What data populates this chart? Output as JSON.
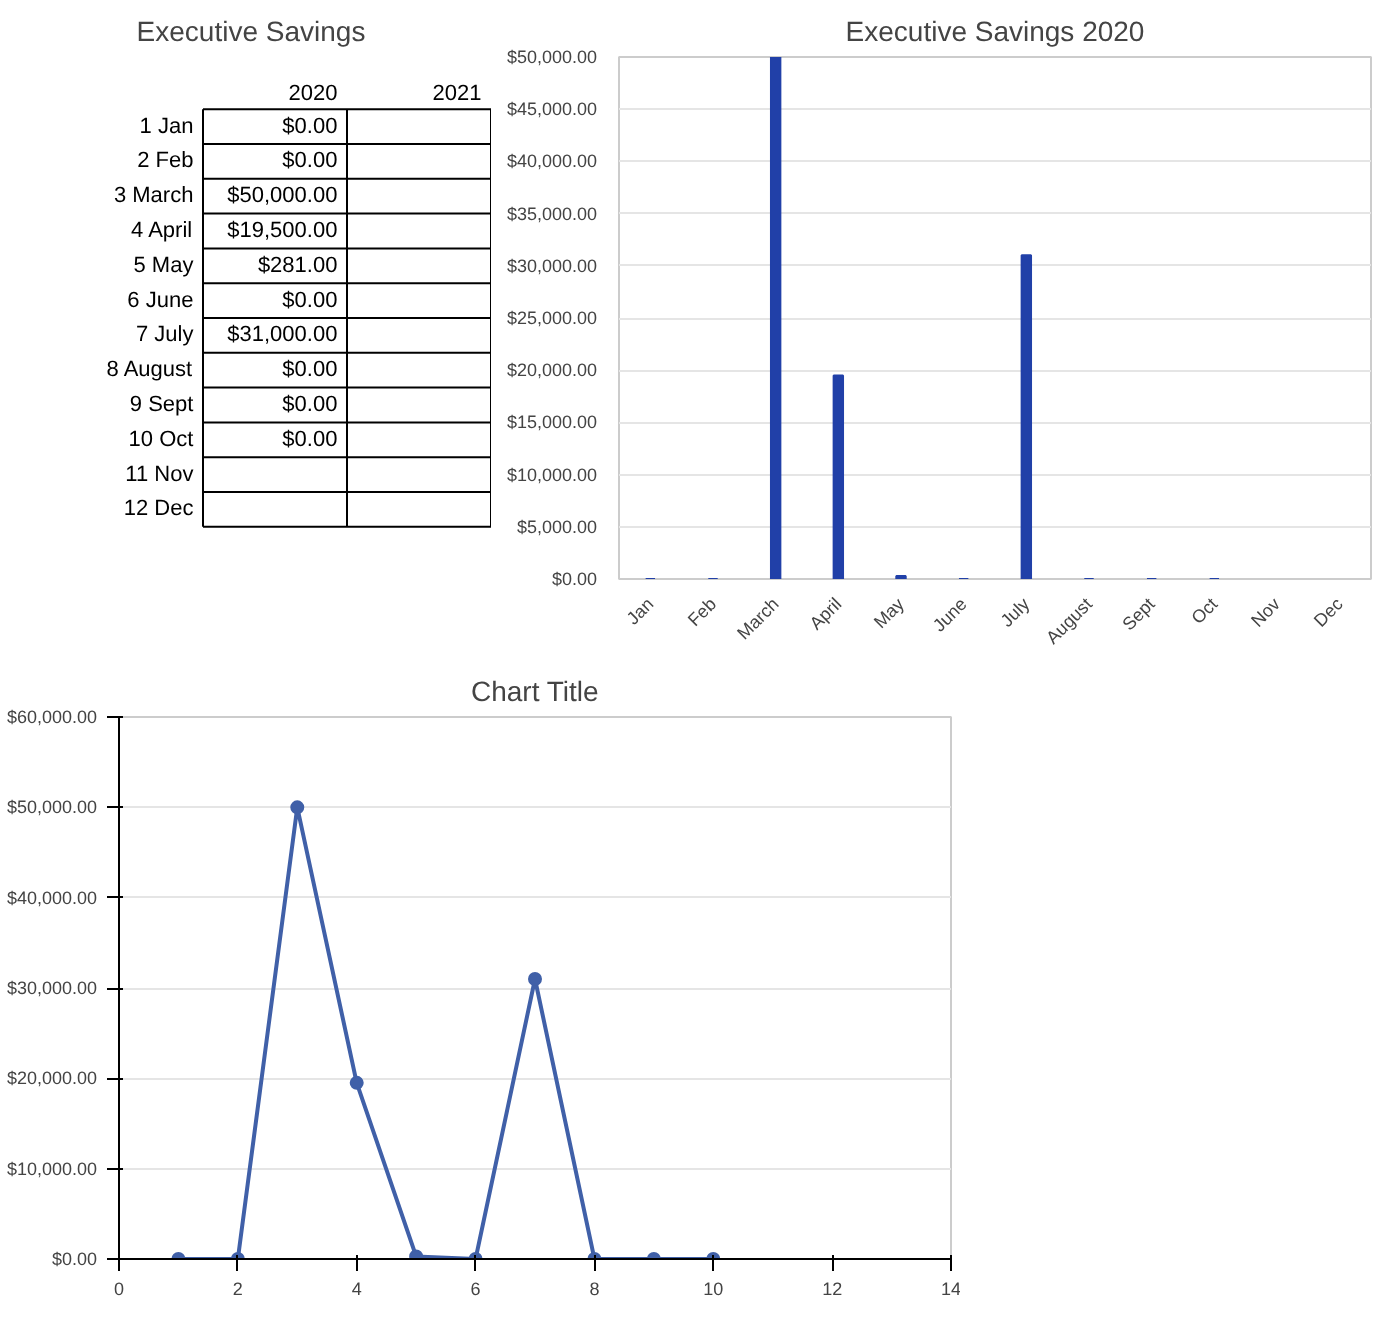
{
  "chart_data": [
    {
      "type": "other",
      "title": "Executive Savings",
      "annotations": [
        "2020",
        "2021"
      ],
      "categories": [
        "1 Jan",
        "2 Feb",
        "3 March",
        "4 April",
        "5 May",
        "6 June",
        "7 July",
        "8 August",
        "9 Sept",
        "10 Oct",
        "11 Nov",
        "12 Dec"
      ],
      "value_labels": [
        "$0.00",
        "$0.00",
        "$50,000.00",
        "$19,500.00",
        "$281.00",
        "$0.00",
        "$31,000.00",
        "$0.00",
        "$0.00",
        "$0.00",
        null,
        null
      ]
    },
    {
      "type": "bar",
      "title": "Executive Savings 2020",
      "categories": [
        "Jan",
        "Feb",
        "March",
        "April",
        "May",
        "June",
        "July",
        "August",
        "Sept",
        "Oct",
        "Nov",
        "Dec"
      ],
      "values": [
        0,
        0,
        50000,
        19500,
        281,
        0,
        31000,
        0,
        0,
        0,
        null,
        null
      ],
      "color": "#2140a8",
      "ylim": [
        0,
        50000
      ],
      "yticks": [
        {
          "value": 0,
          "label": "$0.00"
        },
        {
          "value": 5000,
          "label": "$5,000.00"
        },
        {
          "value": 10000,
          "label": "$10,000.00"
        },
        {
          "value": 15000,
          "label": "$15,000.00"
        },
        {
          "value": 20000,
          "label": "$20,000.00"
        },
        {
          "value": 25000,
          "label": "$25,000.00"
        },
        {
          "value": 30000,
          "label": "$30,000.00"
        },
        {
          "value": 35000,
          "label": "$35,000.00"
        },
        {
          "value": 40000,
          "label": "$40,000.00"
        },
        {
          "value": 45000,
          "label": "$45,000.00"
        },
        {
          "value": 50000,
          "label": "$50,000.00"
        }
      ],
      "grid": "y"
    },
    {
      "type": "line",
      "title": "Chart Title",
      "x": [
        1,
        2,
        3,
        4,
        5,
        6,
        7,
        8,
        9,
        10
      ],
      "values": [
        0,
        0,
        50000,
        19500,
        281,
        0,
        31000,
        0,
        0,
        0
      ],
      "color": "#4060a8",
      "xlim": [
        0,
        14
      ],
      "xticks": [
        0,
        2,
        4,
        6,
        8,
        10,
        12,
        14
      ],
      "ylim": [
        0,
        60000
      ],
      "yticks": [
        {
          "value": 0,
          "label": "$0.00"
        },
        {
          "value": 10000,
          "label": "$10,000.00"
        },
        {
          "value": 20000,
          "label": "$20,000.00"
        },
        {
          "value": 30000,
          "label": "$30,000.00"
        },
        {
          "value": 40000,
          "label": "$40,000.00"
        },
        {
          "value": 50000,
          "label": "$50,000.00"
        },
        {
          "value": 60000,
          "label": "$60,000.00"
        }
      ],
      "grid": "y",
      "marker": "circle",
      "line_style": "solid"
    }
  ]
}
